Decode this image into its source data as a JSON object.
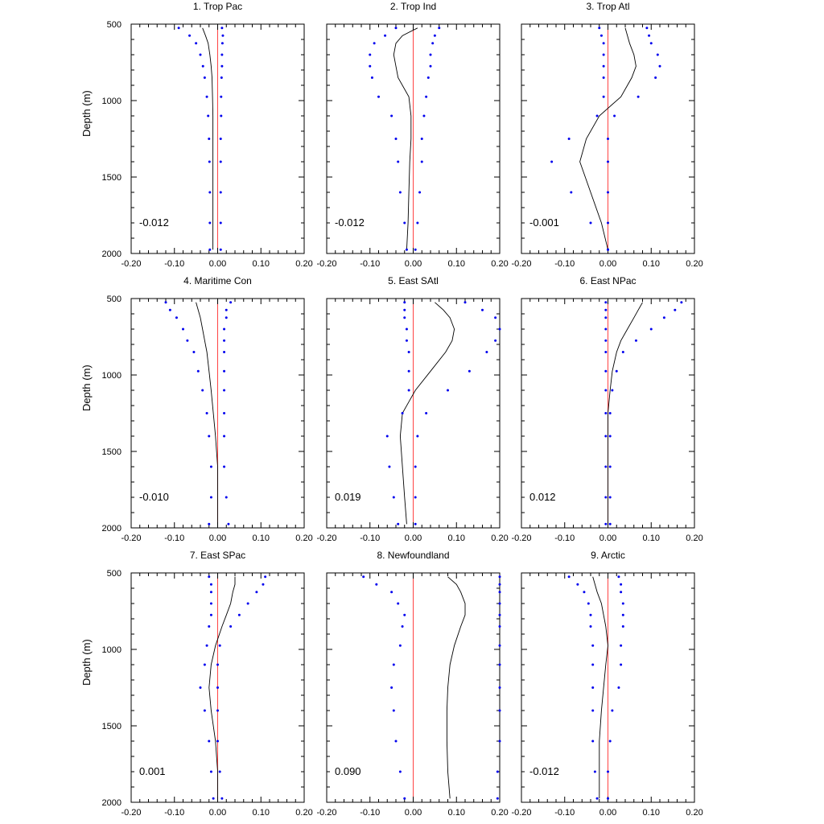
{
  "figure": {
    "ylabel": "Depth (m)"
  },
  "colors": {
    "mean_line": "#000000",
    "spread_dots": "#0000ee",
    "zero_line": "#ff4444",
    "axes": "#000000"
  },
  "chart_data": {
    "type": "line",
    "xlim": [
      -0.2,
      0.2
    ],
    "ylim": [
      500,
      2000
    ],
    "y_inverted": true,
    "xticks": [
      -0.2,
      -0.1,
      0.0,
      0.1,
      0.2
    ],
    "xtick_labels": [
      "-0.20",
      "-0.10",
      "0.00",
      "0.10",
      "0.20"
    ],
    "yticks": [
      500,
      1000,
      1500,
      2000
    ],
    "ytick_labels": [
      "500",
      "1000",
      "1500",
      "2000"
    ],
    "ylabel": "Depth (m)",
    "depths": [
      525,
      575,
      625,
      700,
      775,
      850,
      975,
      1100,
      1250,
      1400,
      1600,
      1800,
      1975
    ],
    "panels": [
      {
        "title": "1. Trop Pac",
        "mean_label": "-0.012",
        "mean_line": [
          -0.035,
          -0.028,
          -0.022,
          -0.018,
          -0.015,
          -0.013,
          -0.012,
          -0.011,
          -0.011,
          -0.011,
          -0.011,
          -0.011,
          -0.011
        ],
        "lower": [
          -0.09,
          -0.065,
          -0.05,
          -0.04,
          -0.034,
          -0.03,
          -0.025,
          -0.022,
          -0.02,
          -0.019,
          -0.018,
          -0.018,
          -0.018
        ],
        "upper": [
          0.01,
          0.012,
          0.011,
          0.01,
          0.01,
          0.009,
          0.008,
          0.008,
          0.007,
          0.007,
          0.007,
          0.007,
          0.007
        ]
      },
      {
        "title": "2. Trop Ind",
        "mean_label": "-0.012",
        "mean_line": [
          0.01,
          -0.025,
          -0.04,
          -0.045,
          -0.04,
          -0.035,
          -0.01,
          -0.005,
          -0.005,
          -0.008,
          -0.01,
          -0.012,
          -0.015
        ],
        "lower": [
          -0.04,
          -0.065,
          -0.09,
          -0.1,
          -0.1,
          -0.095,
          -0.08,
          -0.05,
          -0.04,
          -0.035,
          -0.03,
          -0.02,
          -0.015
        ],
        "upper": [
          0.06,
          0.05,
          0.045,
          0.04,
          0.04,
          0.035,
          0.03,
          0.025,
          0.02,
          0.02,
          0.015,
          0.01,
          0.005
        ]
      },
      {
        "title": "3. Trop Atl",
        "mean_label": "-0.001",
        "mean_line": [
          0.04,
          0.045,
          0.05,
          0.06,
          0.065,
          0.055,
          0.03,
          -0.02,
          -0.05,
          -0.065,
          -0.04,
          -0.015,
          0.0
        ],
        "lower": [
          -0.02,
          -0.015,
          -0.01,
          -0.01,
          -0.01,
          -0.01,
          -0.01,
          -0.025,
          -0.09,
          -0.13,
          -0.085,
          -0.04,
          0.0
        ],
        "upper": [
          0.09,
          0.095,
          0.1,
          0.115,
          0.12,
          0.11,
          0.07,
          0.015,
          0.0,
          0.0,
          0.0,
          0.0,
          0.0
        ]
      },
      {
        "title": "4. Maritime Con",
        "mean_label": "-0.010",
        "mean_line": [
          -0.05,
          -0.045,
          -0.04,
          -0.035,
          -0.03,
          -0.025,
          -0.02,
          -0.015,
          -0.01,
          -0.005,
          0.0,
          0.0,
          0.0
        ],
        "lower": [
          -0.12,
          -0.11,
          -0.095,
          -0.08,
          -0.07,
          -0.055,
          -0.045,
          -0.035,
          -0.025,
          -0.02,
          -0.015,
          -0.015,
          -0.02
        ],
        "upper": [
          0.03,
          0.02,
          0.02,
          0.015,
          0.015,
          0.015,
          0.015,
          0.015,
          0.015,
          0.015,
          0.015,
          0.02,
          0.025
        ]
      },
      {
        "title": "5. East SAtl",
        "mean_label": "0.019",
        "mean_line": [
          0.05,
          0.07,
          0.085,
          0.095,
          0.09,
          0.075,
          0.04,
          0.005,
          -0.025,
          -0.03,
          -0.025,
          -0.02,
          -0.015
        ],
        "lower": [
          -0.02,
          -0.02,
          -0.02,
          -0.015,
          -0.015,
          -0.01,
          -0.01,
          -0.01,
          -0.025,
          -0.06,
          -0.055,
          -0.045,
          -0.035
        ],
        "upper": [
          0.12,
          0.16,
          0.19,
          0.2,
          0.19,
          0.17,
          0.13,
          0.08,
          0.03,
          0.01,
          0.005,
          0.005,
          0.005
        ]
      },
      {
        "title": "6. East NPac",
        "mean_label": "0.012",
        "mean_line": [
          0.08,
          0.07,
          0.06,
          0.045,
          0.03,
          0.02,
          0.01,
          0.005,
          0.0,
          0.0,
          0.0,
          0.0,
          0.0
        ],
        "lower": [
          -0.005,
          -0.005,
          -0.005,
          -0.005,
          -0.005,
          -0.005,
          -0.005,
          -0.005,
          -0.005,
          -0.005,
          -0.005,
          -0.005,
          -0.005
        ],
        "upper": [
          0.17,
          0.155,
          0.13,
          0.1,
          0.065,
          0.035,
          0.02,
          0.01,
          0.005,
          0.005,
          0.005,
          0.005,
          0.005
        ]
      },
      {
        "title": "7. East SPac",
        "mean_label": "0.001",
        "mean_line": [
          0.04,
          0.04,
          0.035,
          0.03,
          0.02,
          0.01,
          -0.005,
          -0.015,
          -0.02,
          -0.015,
          -0.005,
          0.0,
          0.0
        ],
        "lower": [
          -0.02,
          -0.015,
          -0.015,
          -0.015,
          -0.015,
          -0.02,
          -0.025,
          -0.03,
          -0.04,
          -0.03,
          -0.02,
          -0.015,
          -0.01
        ],
        "upper": [
          0.11,
          0.105,
          0.09,
          0.07,
          0.05,
          0.03,
          0.005,
          0.0,
          0.0,
          0.0,
          0.0,
          0.005,
          0.01
        ]
      },
      {
        "title": "8. Newfoundland",
        "mean_label": "0.090",
        "mean_line": [
          0.08,
          0.1,
          0.11,
          0.12,
          0.12,
          0.11,
          0.095,
          0.085,
          0.08,
          0.078,
          0.078,
          0.08,
          0.085
        ],
        "lower": [
          -0.115,
          -0.085,
          -0.05,
          -0.035,
          -0.02,
          -0.025,
          -0.03,
          -0.045,
          -0.05,
          -0.045,
          -0.04,
          -0.03,
          -0.02
        ],
        "upper": [
          0.2,
          0.2,
          0.2,
          0.2,
          0.2,
          0.2,
          0.2,
          0.2,
          0.2,
          0.2,
          0.2,
          0.195,
          0.195
        ]
      },
      {
        "title": "9. Arctic",
        "mean_label": "-0.012",
        "mean_line": [
          -0.035,
          -0.03,
          -0.025,
          -0.015,
          -0.01,
          -0.005,
          0.0,
          -0.005,
          -0.01,
          -0.015,
          -0.02,
          -0.02,
          -0.02
        ],
        "lower": [
          -0.09,
          -0.07,
          -0.055,
          -0.045,
          -0.04,
          -0.04,
          -0.035,
          -0.035,
          -0.035,
          -0.035,
          -0.035,
          -0.03,
          -0.025
        ],
        "upper": [
          0.025,
          0.03,
          0.03,
          0.035,
          0.035,
          0.035,
          0.03,
          0.03,
          0.025,
          0.01,
          0.005,
          0.0,
          0.0
        ]
      }
    ]
  }
}
